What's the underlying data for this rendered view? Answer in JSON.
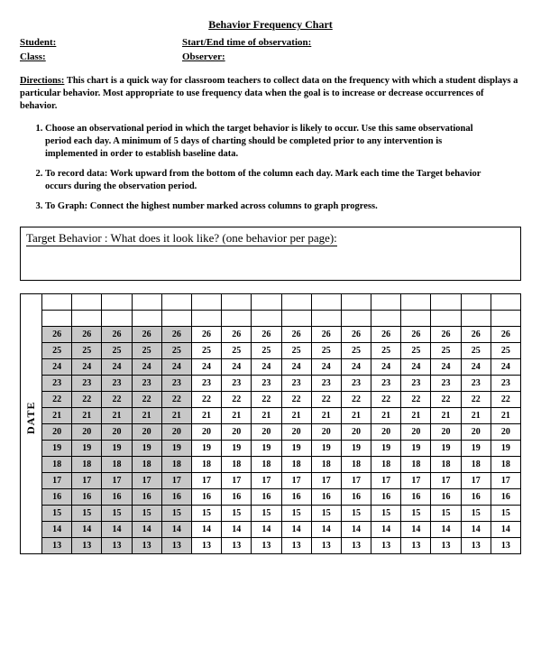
{
  "title": "Behavior Frequency Chart",
  "fields": {
    "student": "Student:",
    "starttime": "Start/End time of observation:",
    "class": "Class:",
    "observer": "Observer:"
  },
  "directions_label": "Directions:",
  "directions_text": "This chart is a quick way for classroom teachers to collect data on the frequency with which a student displays a particular behavior. Most appropriate to use frequency data when the goal is to increase or decrease occurrences of behavior.",
  "steps": [
    "Choose an observational period in which the target behavior is likely to occur.  Use this same observational period each day.  A minimum of 5 days of charting should be completed prior to any intervention is implemented in order to establish baseline data.",
    "To record data:  Work upward from the bottom of the column each day. Mark each time the Target behavior occurs during the observation period.",
    "To Graph:  Connect the highest number marked across columns to graph progress."
  ],
  "target_label": "Target Behavior :  What does it look like? (one behavior per page):",
  "date_label": "DATE",
  "chart": {
    "columns": 16,
    "shaded_columns": 5,
    "header_blank_rows": 1,
    "rows": [
      [
        26,
        26,
        26,
        26,
        26,
        26,
        26,
        26,
        26,
        26,
        26,
        26,
        26,
        26,
        26,
        26
      ],
      [
        25,
        25,
        25,
        25,
        25,
        25,
        25,
        25,
        25,
        25,
        25,
        25,
        25,
        25,
        25,
        25
      ],
      [
        24,
        24,
        24,
        24,
        24,
        24,
        24,
        24,
        24,
        24,
        24,
        24,
        24,
        24,
        24,
        24
      ],
      [
        23,
        23,
        23,
        23,
        23,
        23,
        23,
        23,
        23,
        23,
        23,
        23,
        23,
        23,
        23,
        23
      ],
      [
        22,
        22,
        22,
        22,
        22,
        22,
        22,
        22,
        22,
        22,
        22,
        22,
        22,
        22,
        22,
        22
      ],
      [
        21,
        21,
        21,
        21,
        21,
        21,
        21,
        21,
        21,
        21,
        21,
        21,
        21,
        21,
        21,
        21
      ],
      [
        20,
        20,
        20,
        20,
        20,
        20,
        20,
        20,
        20,
        20,
        20,
        20,
        20,
        20,
        20,
        20
      ],
      [
        19,
        19,
        19,
        19,
        19,
        19,
        19,
        19,
        19,
        19,
        19,
        19,
        19,
        19,
        19,
        19
      ],
      [
        18,
        18,
        18,
        18,
        18,
        18,
        18,
        18,
        18,
        18,
        18,
        18,
        18,
        18,
        18,
        18
      ],
      [
        17,
        17,
        17,
        17,
        17,
        17,
        17,
        17,
        17,
        17,
        17,
        17,
        17,
        17,
        17,
        17
      ],
      [
        16,
        16,
        16,
        16,
        16,
        16,
        16,
        16,
        16,
        16,
        16,
        16,
        16,
        16,
        16,
        16
      ],
      [
        15,
        15,
        15,
        15,
        15,
        15,
        15,
        15,
        15,
        15,
        15,
        15,
        15,
        15,
        15,
        15
      ],
      [
        14,
        14,
        14,
        14,
        14,
        14,
        14,
        14,
        14,
        14,
        14,
        14,
        14,
        14,
        14,
        14
      ],
      [
        13,
        13,
        13,
        13,
        13,
        13,
        13,
        13,
        13,
        13,
        13,
        13,
        13,
        13,
        13,
        13
      ]
    ],
    "colors": {
      "shaded": "#c8c8c8",
      "border": "#000000",
      "background": "#ffffff",
      "text": "#000000"
    },
    "font_size": 10,
    "font_weight": "bold"
  }
}
